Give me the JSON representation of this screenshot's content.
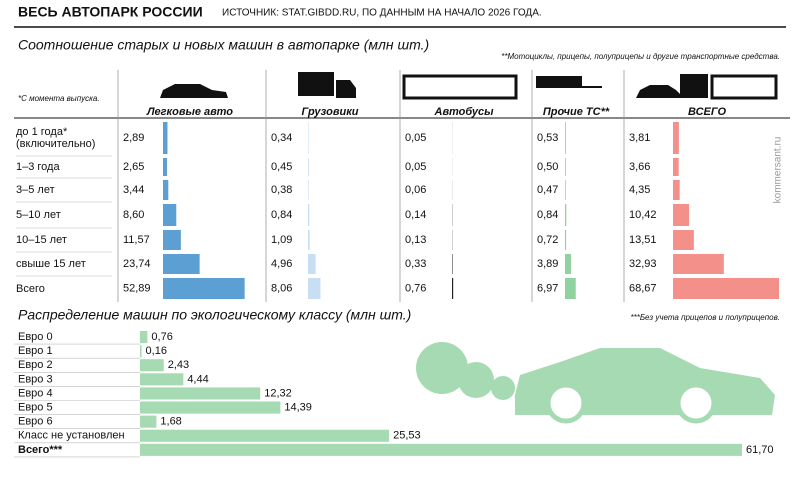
{
  "header": {
    "title": "ВЕСЬ АВТОПАРК РОССИИ",
    "source": "ИСТОЧНИК: STAT.GIBDD.RU, ПО ДАННЫМ НА НАЧАЛО 2026 ГОДА.",
    "watermark": "kommersant.ru"
  },
  "chart_data": [
    {
      "type": "bar_matrix",
      "title": "Соотношение старых и новых машин в автопарке (млн шт.)",
      "notes": [
        "**Мотоциклы, прицепы, полуприцепы и другие транспортные средства.",
        "*С момента выпуска."
      ],
      "categories": [
        "до 1 года* (включительно)",
        "1–3 года",
        "3–5 лет",
        "5–10 лет",
        "10–15 лет",
        "свыше 15 лет",
        "Всего"
      ],
      "series": [
        {
          "name": "Легковые авто",
          "color": "#5b9fd3",
          "values": [
            2.89,
            2.65,
            3.44,
            8.6,
            11.57,
            23.74,
            52.89
          ],
          "value_labels": [
            "2,89",
            "2,65",
            "3,44",
            "8,60",
            "11,57",
            "23,74",
            "52,89"
          ]
        },
        {
          "name": "Грузовики",
          "color": "#c8dff3",
          "values": [
            0.34,
            0.45,
            0.38,
            0.84,
            1.09,
            4.96,
            8.06
          ],
          "value_labels": [
            "0,34",
            "0,45",
            "0,38",
            "0,84",
            "1,09",
            "4,96",
            "8,06"
          ]
        },
        {
          "name": "Автобусы",
          "color": "#222222",
          "values": [
            0.05,
            0.05,
            0.06,
            0.14,
            0.13,
            0.33,
            0.76
          ],
          "value_labels": [
            "0,05",
            "0,05",
            "0,06",
            "0,14",
            "0,13",
            "0,33",
            "0,76"
          ]
        },
        {
          "name": "Прочие ТС**",
          "color": "#8fd19f",
          "values": [
            0.53,
            0.5,
            0.47,
            0.84,
            0.72,
            3.89,
            6.97
          ],
          "value_labels": [
            "0,53",
            "0,50",
            "0,47",
            "0,84",
            "0,72",
            "3,89",
            "6,97"
          ]
        },
        {
          "name": "ВСЕГО",
          "color": "#f4908a",
          "values": [
            3.81,
            3.66,
            4.35,
            10.42,
            13.51,
            32.93,
            68.67
          ],
          "value_labels": [
            "3,81",
            "3,66",
            "4,35",
            "10,42",
            "13,51",
            "32,93",
            "68,67"
          ]
        }
      ]
    },
    {
      "type": "hbar",
      "title": "Распределение машин по экологическому классу (млн шт.)",
      "note": "***Без учета прицепов и полуприцепов.",
      "categories": [
        "Евро 0",
        "Евро 1",
        "Евро 2",
        "Евро 3",
        "Евро 4",
        "Евро 5",
        "Евро 6",
        "Класс не установлен",
        "Всего***"
      ],
      "values": [
        0.76,
        0.16,
        2.43,
        4.44,
        12.32,
        14.39,
        1.68,
        25.53,
        61.7
      ],
      "value_labels": [
        "0,76",
        "0,16",
        "2,43",
        "4,44",
        "12,32",
        "14,39",
        "1,68",
        "25,53",
        "61,70"
      ],
      "color": "#a6dab2"
    }
  ]
}
